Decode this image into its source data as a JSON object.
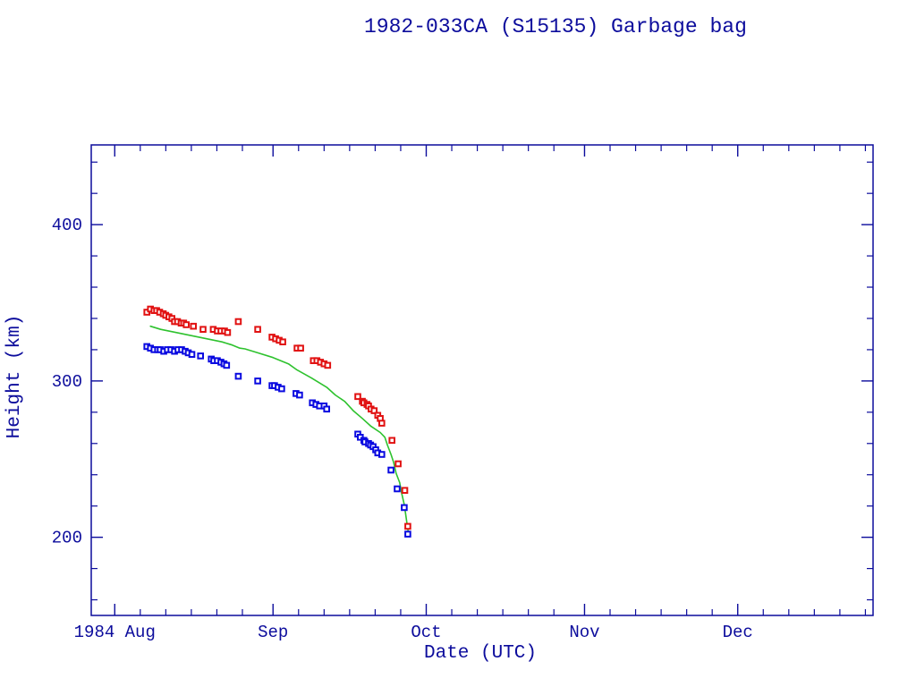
{
  "title": "1982-033CA (S15135) Garbage bag",
  "chart_data": {
    "type": "scatter",
    "title": "1982-033CA (S15135) Garbage bag",
    "xlabel": "Date (UTC)",
    "ylabel": "Height (km)",
    "x_unit": "days since 1984-08-01",
    "xlim": [
      -4.6,
      148.5
    ],
    "ylim": [
      150,
      451
    ],
    "grid": false,
    "legend": "none",
    "colors": {
      "axis": "#0c0c9c",
      "text": "#0c0c9c",
      "background": "#ffffff"
    },
    "x_ticks": {
      "major": [
        {
          "label": "1984 Aug",
          "day": 0
        },
        {
          "label": "Sep",
          "day": 31
        },
        {
          "label": "Oct",
          "day": 61
        },
        {
          "label": "Nov",
          "day": 92
        },
        {
          "label": "Dec",
          "day": 122
        }
      ],
      "minor_days": [
        5,
        10,
        15,
        20,
        25,
        36,
        41,
        46,
        51,
        56,
        66,
        71,
        76,
        81,
        86,
        97,
        102,
        107,
        112,
        117,
        127,
        132,
        137,
        142,
        147
      ]
    },
    "y_ticks": {
      "major": [
        200,
        300,
        400
      ],
      "minor": [
        160,
        180,
        220,
        240,
        260,
        280,
        320,
        340,
        360,
        380,
        420,
        440
      ]
    },
    "series": [
      {
        "name": "red-squares",
        "kind": "scatter",
        "marker": "open-square",
        "color": "#e11212",
        "points": [
          [
            6.3,
            344
          ],
          [
            7.0,
            346
          ],
          [
            7.7,
            345
          ],
          [
            8.2,
            345
          ],
          [
            8.8,
            344
          ],
          [
            9.5,
            343
          ],
          [
            10.0,
            342
          ],
          [
            10.6,
            341
          ],
          [
            11.2,
            340
          ],
          [
            11.7,
            338
          ],
          [
            12.3,
            338
          ],
          [
            13.0,
            337
          ],
          [
            13.5,
            337
          ],
          [
            14.0,
            336
          ],
          [
            15.4,
            335
          ],
          [
            17.3,
            333
          ],
          [
            19.3,
            333
          ],
          [
            20.1,
            332
          ],
          [
            20.8,
            332
          ],
          [
            21.5,
            332
          ],
          [
            22.1,
            331
          ],
          [
            24.2,
            338
          ],
          [
            28.0,
            333
          ],
          [
            30.8,
            328
          ],
          [
            31.5,
            327
          ],
          [
            32.2,
            326
          ],
          [
            32.9,
            325
          ],
          [
            35.7,
            321
          ],
          [
            36.4,
            321
          ],
          [
            38.9,
            313
          ],
          [
            39.6,
            313
          ],
          [
            40.3,
            312
          ],
          [
            41.0,
            311
          ],
          [
            41.7,
            310
          ],
          [
            47.6,
            290
          ],
          [
            48.5,
            287
          ],
          [
            48.8,
            286
          ],
          [
            49.4,
            285
          ],
          [
            49.7,
            284
          ],
          [
            50.2,
            282
          ],
          [
            50.8,
            281
          ],
          [
            51.5,
            278
          ],
          [
            52.0,
            276
          ],
          [
            52.3,
            273
          ],
          [
            54.3,
            262
          ],
          [
            55.5,
            247
          ],
          [
            56.8,
            230
          ],
          [
            57.4,
            207
          ]
        ]
      },
      {
        "name": "blue-squares",
        "kind": "scatter",
        "marker": "open-square",
        "color": "#0a0ae0",
        "points": [
          [
            6.3,
            322
          ],
          [
            7.0,
            321
          ],
          [
            7.7,
            320
          ],
          [
            8.4,
            320
          ],
          [
            8.9,
            320
          ],
          [
            9.6,
            319
          ],
          [
            10.3,
            320
          ],
          [
            11.0,
            320
          ],
          [
            11.7,
            319
          ],
          [
            12.4,
            320
          ],
          [
            13.1,
            320
          ],
          [
            13.8,
            319
          ],
          [
            14.4,
            318
          ],
          [
            15.1,
            317
          ],
          [
            16.8,
            316
          ],
          [
            18.9,
            314
          ],
          [
            19.4,
            313
          ],
          [
            20.1,
            313
          ],
          [
            20.8,
            312
          ],
          [
            21.4,
            311
          ],
          [
            21.9,
            310
          ],
          [
            24.2,
            303
          ],
          [
            28.0,
            300
          ],
          [
            30.8,
            297
          ],
          [
            31.3,
            297
          ],
          [
            32.0,
            296
          ],
          [
            32.7,
            295
          ],
          [
            35.5,
            292
          ],
          [
            36.2,
            291
          ],
          [
            38.7,
            286
          ],
          [
            39.4,
            285
          ],
          [
            40.1,
            284
          ],
          [
            41.0,
            284
          ],
          [
            41.5,
            282
          ],
          [
            47.6,
            266
          ],
          [
            48.1,
            264
          ],
          [
            48.8,
            262
          ],
          [
            49.0,
            261
          ],
          [
            49.7,
            260
          ],
          [
            50.1,
            259
          ],
          [
            50.6,
            258
          ],
          [
            51.1,
            256
          ],
          [
            51.5,
            254
          ],
          [
            52.3,
            253
          ],
          [
            54.1,
            243
          ],
          [
            55.3,
            231
          ],
          [
            56.7,
            219
          ],
          [
            57.4,
            202
          ]
        ]
      },
      {
        "name": "green-line",
        "kind": "line",
        "color": "#2ec22e",
        "points": [
          [
            7.0,
            335
          ],
          [
            9,
            333
          ],
          [
            12,
            331
          ],
          [
            15,
            329
          ],
          [
            18,
            327
          ],
          [
            21,
            325
          ],
          [
            23,
            323
          ],
          [
            24.5,
            321
          ],
          [
            25.5,
            320.5
          ],
          [
            28,
            318
          ],
          [
            31,
            315
          ],
          [
            34,
            311
          ],
          [
            35.7,
            307
          ],
          [
            38.5,
            302
          ],
          [
            41.5,
            296
          ],
          [
            43.2,
            291
          ],
          [
            45,
            287
          ],
          [
            46.7,
            281
          ],
          [
            48.5,
            276
          ],
          [
            50.2,
            271
          ],
          [
            52,
            267
          ],
          [
            52.9,
            264
          ],
          [
            53.4,
            259
          ],
          [
            54.1,
            253
          ],
          [
            54.6,
            248
          ],
          [
            55.1,
            241
          ],
          [
            55.8,
            235
          ],
          [
            56.2,
            228
          ],
          [
            56.7,
            221
          ],
          [
            57.0,
            214
          ],
          [
            57.4,
            205
          ],
          [
            57.6,
            202
          ]
        ]
      }
    ]
  }
}
